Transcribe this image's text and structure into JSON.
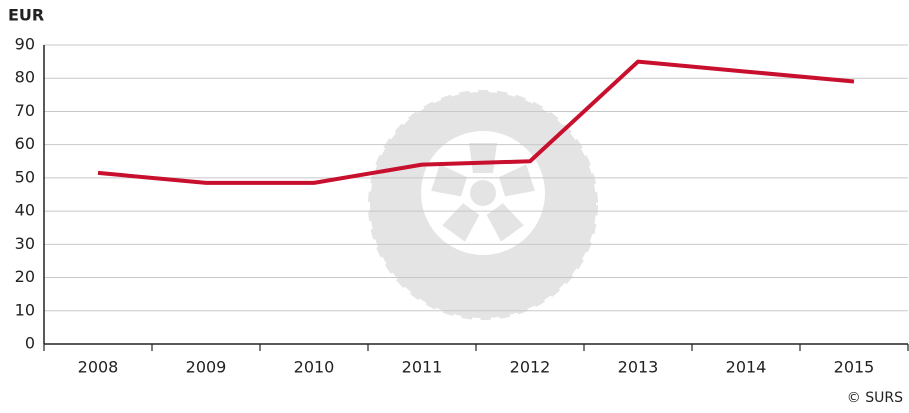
{
  "chart_data": {
    "type": "line",
    "y_label": "EUR",
    "source": "© SURS",
    "categories": [
      "2008",
      "2009",
      "2010",
      "2011",
      "2012",
      "2013",
      "2014",
      "2015"
    ],
    "series": [
      {
        "name": "EUR",
        "color": "#c8102e",
        "values": [
          51.5,
          48.5,
          48.5,
          54,
          55,
          85,
          82,
          79
        ]
      }
    ],
    "ylim": [
      0,
      90
    ],
    "yticks": [
      0,
      10,
      20,
      30,
      40,
      50,
      60,
      70,
      80,
      90
    ],
    "grid": true
  }
}
